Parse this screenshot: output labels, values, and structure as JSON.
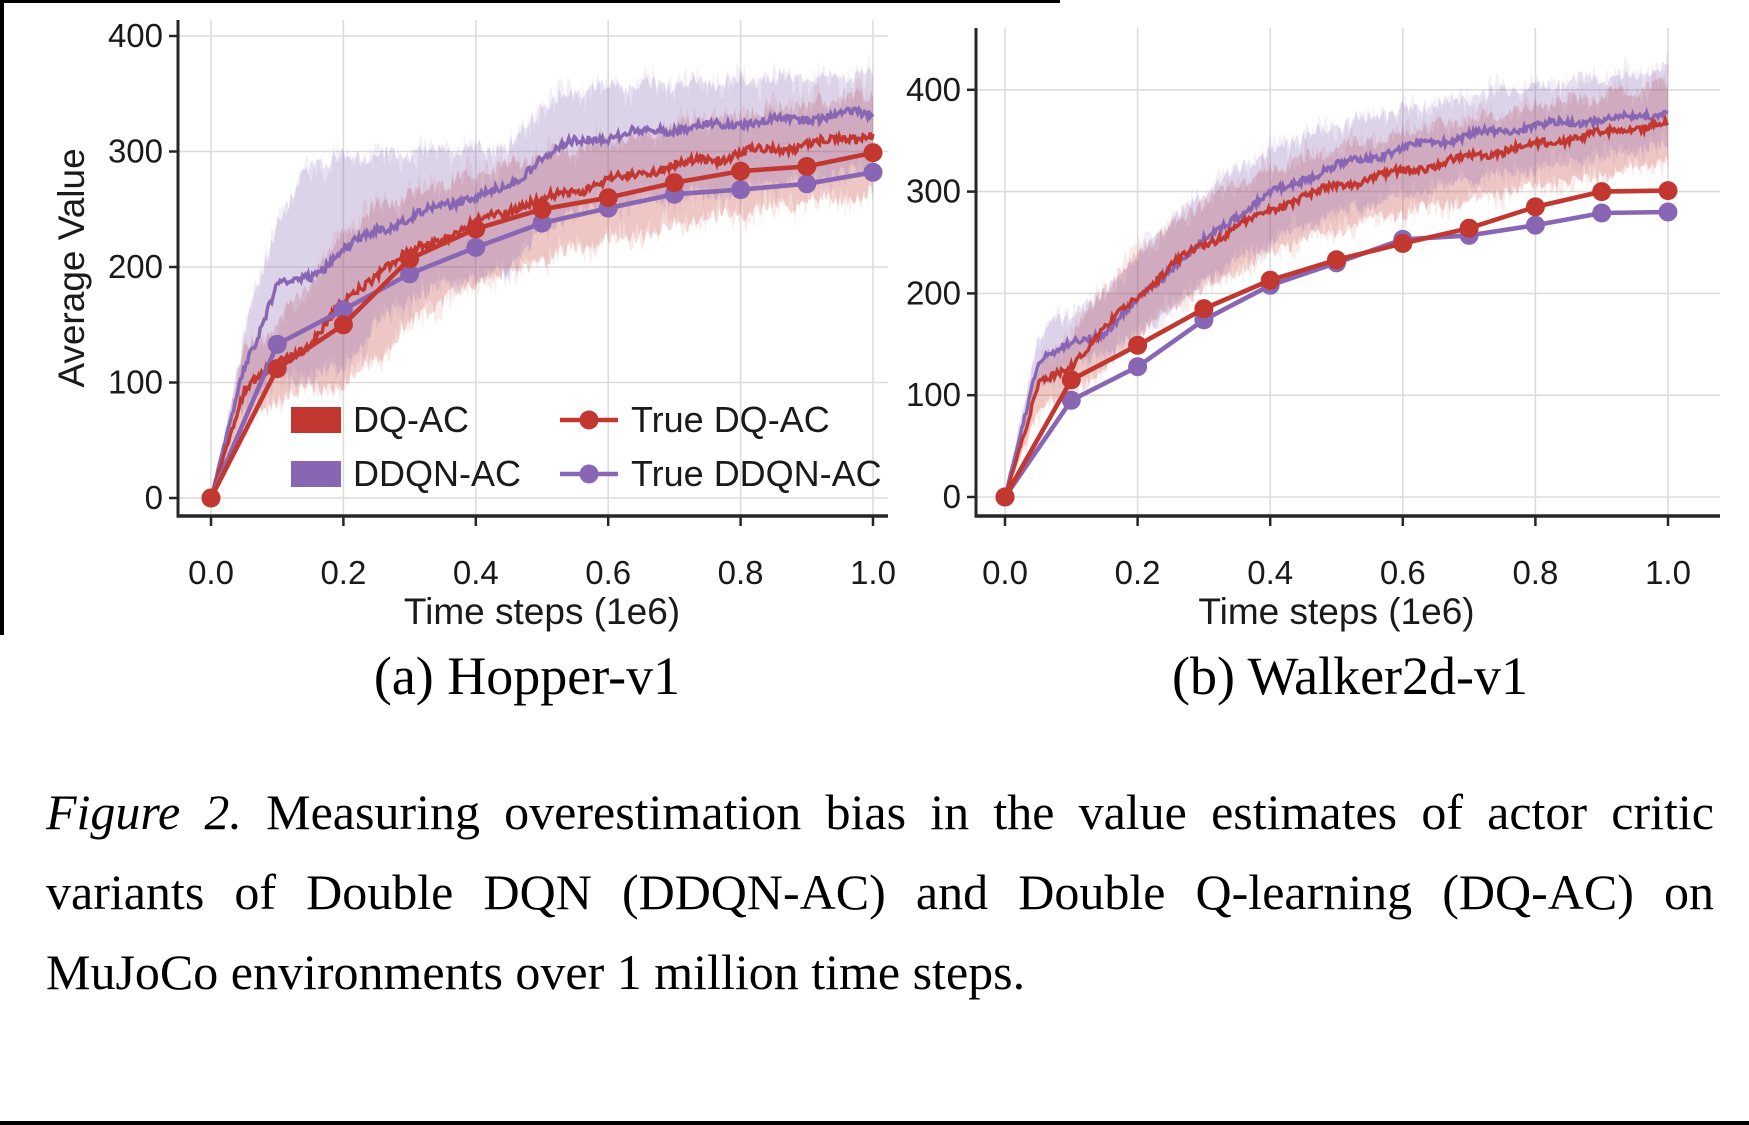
{
  "page": {
    "background": "#ffffff",
    "border_color": "#000000"
  },
  "colors": {
    "red": "#c2372f",
    "purple": "#8966b4",
    "red_band": "#c2372f",
    "purple_band": "#8966b4",
    "grid": "#dcdcdc",
    "spine": "#262626",
    "text": "#1a1a1a"
  },
  "caption": {
    "label": "Figure 2.",
    "body": "Measuring overestimation bias in the value estimates of actor critic variants of Double DQN (DDQN-AC) and Double Q-learning (DQ-AC) on MuJoCo environments over 1 million time steps."
  },
  "chart_data": [
    {
      "type": "line",
      "panel_caption": "(a) Hopper-v1",
      "xlabel": "Time steps (1e6)",
      "ylabel": "Average Value",
      "xlim": [
        0,
        1
      ],
      "ylim": [
        0,
        400
      ],
      "xticks": [
        "0.0",
        "0.2",
        "0.4",
        "0.6",
        "0.8",
        "1.0"
      ],
      "yticks": [
        "0",
        "100",
        "200",
        "300",
        "400"
      ],
      "grid": true,
      "legend_position": "lower center, 2 columns, no frame",
      "x_noisy": [
        0,
        0.05,
        0.1,
        0.15,
        0.2,
        0.25,
        0.3,
        0.35,
        0.4,
        0.45,
        0.5,
        0.55,
        0.6,
        0.65,
        0.7,
        0.75,
        0.8,
        0.85,
        0.9,
        0.95,
        1.0
      ],
      "x_markers": [
        0,
        0.1,
        0.2,
        0.3,
        0.4,
        0.5,
        0.6,
        0.7,
        0.8,
        0.9,
        1.0
      ],
      "series": [
        {
          "name": "DQ-AC",
          "color_key": "red",
          "style": "noisy_line_with_band",
          "values": [
            0,
            95,
            115,
            135,
            168,
            195,
            213,
            225,
            238,
            250,
            258,
            266,
            274,
            281,
            288,
            293,
            298,
            302,
            306,
            310,
            315
          ],
          "band_lo": [
            0,
            60,
            85,
            95,
            100,
            120,
            150,
            172,
            186,
            196,
            206,
            216,
            223,
            229,
            236,
            241,
            246,
            251,
            255,
            259,
            263
          ],
          "band_hi": [
            0,
            128,
            148,
            188,
            230,
            252,
            263,
            272,
            281,
            289,
            296,
            303,
            309,
            316,
            322,
            328,
            333,
            337,
            341,
            345,
            350
          ]
        },
        {
          "name": "DDQN-AC",
          "color_key": "purple",
          "style": "noisy_line_with_band",
          "values": [
            0,
            112,
            185,
            191,
            215,
            231,
            243,
            252,
            262,
            268,
            296,
            308,
            313,
            317,
            320,
            322,
            325,
            327,
            329,
            331,
            334
          ],
          "band_lo": [
            0,
            82,
            102,
            106,
            112,
            152,
            172,
            186,
            191,
            196,
            232,
            250,
            254,
            257,
            260,
            263,
            267,
            271,
            275,
            279,
            286
          ],
          "band_hi": [
            0,
            140,
            240,
            288,
            295,
            297,
            299,
            301,
            302,
            303,
            340,
            352,
            355,
            357,
            358,
            360,
            361,
            362,
            363,
            364,
            366
          ]
        },
        {
          "name": "True DQ-AC",
          "color_key": "red",
          "style": "line_markers",
          "values": [
            0,
            112,
            150,
            207,
            233,
            250,
            260,
            273,
            283,
            287,
            299
          ]
        },
        {
          "name": "True DDQN-AC",
          "color_key": "purple",
          "style": "line_markers",
          "values": [
            0,
            133,
            163,
            194,
            217,
            238,
            251,
            263,
            267,
            272,
            282
          ]
        }
      ]
    },
    {
      "type": "line",
      "panel_caption": "(b) Walker2d-v1",
      "xlabel": "Time steps (1e6)",
      "ylabel": "",
      "xlim": [
        0,
        1
      ],
      "ylim": [
        0,
        400
      ],
      "xticks": [
        "0.0",
        "0.2",
        "0.4",
        "0.6",
        "0.8",
        "1.0"
      ],
      "yticks": [
        "0",
        "100",
        "200",
        "300",
        "400"
      ],
      "grid": true,
      "legend_position": "none",
      "x_noisy": [
        0,
        0.05,
        0.1,
        0.15,
        0.2,
        0.25,
        0.3,
        0.35,
        0.4,
        0.45,
        0.5,
        0.55,
        0.6,
        0.65,
        0.7,
        0.75,
        0.8,
        0.85,
        0.9,
        0.95,
        1.0
      ],
      "x_markers": [
        0,
        0.1,
        0.2,
        0.3,
        0.4,
        0.5,
        0.6,
        0.7,
        0.8,
        0.9,
        1.0
      ],
      "series": [
        {
          "name": "DQ-AC",
          "color_key": "red",
          "style": "noisy_line_with_band",
          "values": [
            0,
            108,
            130,
            165,
            198,
            226,
            248,
            265,
            282,
            295,
            305,
            313,
            320,
            327,
            334,
            340,
            346,
            352,
            357,
            362,
            368
          ],
          "band_lo": [
            0,
            85,
            102,
            128,
            158,
            186,
            206,
            223,
            239,
            253,
            263,
            271,
            279,
            286,
            292,
            298,
            304,
            310,
            315,
            322,
            331
          ],
          "band_hi": [
            0,
            128,
            160,
            205,
            240,
            268,
            290,
            308,
            322,
            333,
            342,
            350,
            357,
            364,
            371,
            377,
            383,
            389,
            394,
            399,
            405
          ]
        },
        {
          "name": "DDQN-AC",
          "color_key": "purple",
          "style": "noisy_line_with_band",
          "values": [
            0,
            135,
            150,
            163,
            192,
            226,
            251,
            277,
            297,
            313,
            325,
            334,
            342,
            349,
            355,
            360,
            364,
            368,
            371,
            374,
            378
          ],
          "band_lo": [
            0,
            110,
            128,
            140,
            158,
            186,
            211,
            233,
            251,
            266,
            278,
            288,
            296,
            303,
            310,
            316,
            322,
            328,
            333,
            339,
            346
          ],
          "band_hi": [
            0,
            160,
            182,
            200,
            235,
            270,
            298,
            322,
            340,
            355,
            365,
            373,
            380,
            386,
            392,
            398,
            403,
            408,
            412,
            416,
            421
          ]
        },
        {
          "name": "True DQ-AC",
          "color_key": "red",
          "style": "line_markers",
          "values": [
            0,
            115,
            149,
            185,
            213,
            233,
            249,
            264,
            285,
            300,
            301
          ]
        },
        {
          "name": "True DDQN-AC",
          "color_key": "purple",
          "style": "line_markers",
          "values": [
            0,
            95,
            128,
            174,
            208,
            230,
            253,
            257,
            267,
            279,
            280
          ]
        }
      ]
    }
  ]
}
